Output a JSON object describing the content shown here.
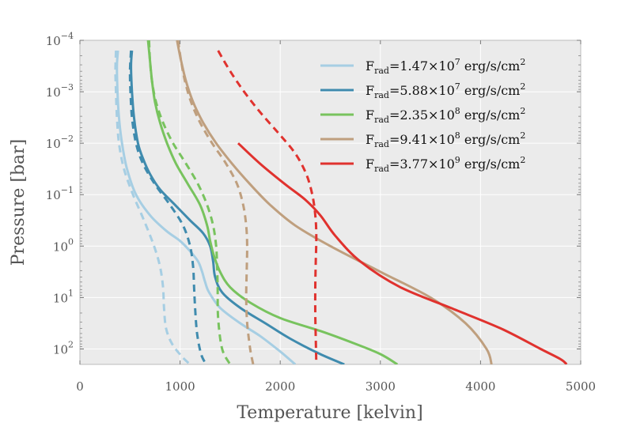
{
  "chart_data": {
    "type": "line",
    "xlabel": "Temperature [kelvin]",
    "ylabel": "Pressure [bar]",
    "xlim": [
      0,
      5000
    ],
    "ylim_log10": [
      -4,
      2.3
    ],
    "y_inverted": true,
    "y_scale": "log",
    "grid": true,
    "legend_position": "top-right",
    "x_ticks": [
      {
        "value": 0,
        "label": "0"
      },
      {
        "value": 1000,
        "label": "1000"
      },
      {
        "value": 2000,
        "label": "2000"
      },
      {
        "value": 3000,
        "label": "3000"
      },
      {
        "value": 4000,
        "label": "4000"
      },
      {
        "value": 5000,
        "label": "5000"
      }
    ],
    "y_ticks": [
      {
        "exp": -4,
        "base": "10",
        "sup": "−4"
      },
      {
        "exp": -3,
        "base": "10",
        "sup": "−3"
      },
      {
        "exp": -2,
        "base": "10",
        "sup": "−2"
      },
      {
        "exp": -1,
        "base": "10",
        "sup": "−1"
      },
      {
        "exp": 0,
        "base": "10",
        "sup": "0"
      },
      {
        "exp": 1,
        "base": "10",
        "sup": "1"
      },
      {
        "exp": 2,
        "base": "10",
        "sup": "2"
      }
    ],
    "series": [
      {
        "name": "F_rad=1.47×10^7 erg/s/cm^2",
        "legend": {
          "F": "F",
          "sub": "rad",
          "mid": "=1.47×10",
          "exp": "7",
          "unit": " erg/s/cm",
          "unit_sup": "2"
        },
        "color": "#a6cee3",
        "solid": {
          "T": [
            380,
            370,
            375,
            390,
            420,
            470,
            560,
            700,
            860,
            1000,
            1100,
            1180,
            1220,
            1250,
            1290,
            1400,
            1600,
            1800,
            2000,
            2150
          ],
          "logP": [
            -3.8,
            -3.5,
            -3.0,
            -2.5,
            -2.0,
            -1.5,
            -1.0,
            -0.6,
            -0.3,
            -0.1,
            0.1,
            0.3,
            0.5,
            0.7,
            0.9,
            1.2,
            1.5,
            1.75,
            2.05,
            2.3
          ]
        },
        "dashed": {
          "T": [
            360,
            355,
            360,
            370,
            390,
            440,
            530,
            640,
            740,
            800,
            830,
            840,
            860,
            920,
            1020,
            1100
          ],
          "logP": [
            -3.8,
            -3.4,
            -3.0,
            -2.5,
            -2.0,
            -1.5,
            -1.0,
            -0.5,
            0.0,
            0.4,
            0.8,
            1.2,
            1.6,
            1.9,
            2.15,
            2.3
          ]
        }
      },
      {
        "name": "F_rad=5.88×10^7 erg/s/cm^2",
        "legend": {
          "F": "F",
          "sub": "rad",
          "mid": "=5.88×10",
          "exp": "7",
          "unit": " erg/s/cm",
          "unit_sup": "2"
        },
        "color": "#3f8bae",
        "solid": {
          "T": [
            520,
            510,
            520,
            540,
            580,
            630,
            700,
            800,
            950,
            1100,
            1230,
            1300,
            1330,
            1350,
            1420,
            1600,
            1850,
            2100,
            2400,
            2640
          ],
          "logP": [
            -3.8,
            -3.5,
            -3.0,
            -2.5,
            -2.0,
            -1.7,
            -1.4,
            -1.1,
            -0.8,
            -0.5,
            -0.25,
            0.0,
            0.3,
            0.6,
            0.9,
            1.2,
            1.5,
            1.8,
            2.1,
            2.3
          ]
        },
        "dashed": {
          "T": [
            510,
            500,
            505,
            520,
            560,
            630,
            750,
            900,
            1030,
            1100,
            1130,
            1140,
            1150,
            1170,
            1210,
            1260
          ],
          "logP": [
            -3.8,
            -3.4,
            -3.0,
            -2.5,
            -2.0,
            -1.6,
            -1.2,
            -0.8,
            -0.4,
            0.0,
            0.4,
            0.8,
            1.2,
            1.7,
            2.1,
            2.3
          ]
        }
      },
      {
        "name": "F_rad=2.35×10^8 erg/s/cm^2",
        "legend": {
          "F": "F",
          "sub": "rad",
          "mid": "=2.35×10",
          "exp": "8",
          "unit": " erg/s/cm",
          "unit_sup": "2"
        },
        "color": "#78c35e",
        "solid": {
          "T": [
            680,
            700,
            720,
            750,
            800,
            870,
            960,
            1080,
            1200,
            1270,
            1300,
            1340,
            1400,
            1500,
            1700,
            2000,
            2400,
            2750,
            3000,
            3170
          ],
          "logP": [
            -4.0,
            -3.6,
            -3.2,
            -2.8,
            -2.4,
            -2.0,
            -1.6,
            -1.2,
            -0.8,
            -0.4,
            -0.1,
            0.2,
            0.5,
            0.8,
            1.1,
            1.4,
            1.65,
            1.9,
            2.1,
            2.3
          ]
        },
        "dashed": {
          "T": [
            690,
            700,
            720,
            760,
            830,
            930,
            1060,
            1180,
            1270,
            1330,
            1360,
            1370,
            1375,
            1380,
            1420,
            1500
          ],
          "logP": [
            -4.0,
            -3.6,
            -3.2,
            -2.8,
            -2.4,
            -2.0,
            -1.6,
            -1.2,
            -0.8,
            -0.4,
            0.0,
            0.4,
            0.8,
            1.4,
            2.0,
            2.3
          ]
        }
      },
      {
        "name": "F_rad=9.41×10^8 erg/s/cm^2",
        "legend": {
          "F": "F",
          "sub": "rad",
          "mid": "=9.41×10",
          "exp": "8",
          "unit": " erg/s/cm",
          "unit_sup": "2"
        },
        "color": "#bf9f7e",
        "solid": {
          "T": [
            970,
            1010,
            1060,
            1130,
            1230,
            1360,
            1520,
            1700,
            1900,
            2150,
            2500,
            3000,
            3500,
            3850,
            4060,
            4110
          ],
          "logP": [
            -4.0,
            -3.6,
            -3.2,
            -2.8,
            -2.4,
            -2.0,
            -1.6,
            -1.2,
            -0.8,
            -0.4,
            0.0,
            0.5,
            1.0,
            1.5,
            2.0,
            2.3
          ]
        },
        "dashed": {
          "T": [
            980,
            1010,
            1050,
            1110,
            1200,
            1320,
            1460,
            1570,
            1630,
            1660,
            1670,
            1665,
            1660,
            1670,
            1700,
            1730
          ],
          "logP": [
            -4.0,
            -3.6,
            -3.2,
            -2.8,
            -2.4,
            -2.0,
            -1.6,
            -1.2,
            -0.8,
            -0.4,
            0.0,
            0.5,
            1.0,
            1.5,
            2.0,
            2.3
          ]
        }
      },
      {
        "name": "F_rad=3.77×10^9 erg/s/cm^2",
        "legend": {
          "F": "F",
          "sub": "rad",
          "mid": "=3.77×10",
          "exp": "9",
          "unit": " erg/s/cm",
          "unit_sup": "2"
        },
        "color": "#e0322e",
        "solid": {
          "T": [
            1580,
            1800,
            2050,
            2250,
            2400,
            2550,
            2800,
            3200,
            3700,
            4200,
            4600,
            4800,
            4860
          ],
          "logP": [
            -2.0,
            -1.6,
            -1.2,
            -0.9,
            -0.6,
            -0.2,
            0.3,
            0.8,
            1.2,
            1.6,
            2.0,
            2.2,
            2.3
          ]
        },
        "dashed": {
          "T": [
            1380,
            1500,
            1640,
            1800,
            1980,
            2150,
            2260,
            2320,
            2350,
            2360,
            2355,
            2350,
            2350,
            2355,
            2360
          ],
          "logP": [
            -3.8,
            -3.4,
            -3.0,
            -2.6,
            -2.2,
            -1.8,
            -1.4,
            -1.0,
            -0.6,
            -0.2,
            0.3,
            0.8,
            1.3,
            1.8,
            2.3
          ]
        }
      }
    ]
  }
}
